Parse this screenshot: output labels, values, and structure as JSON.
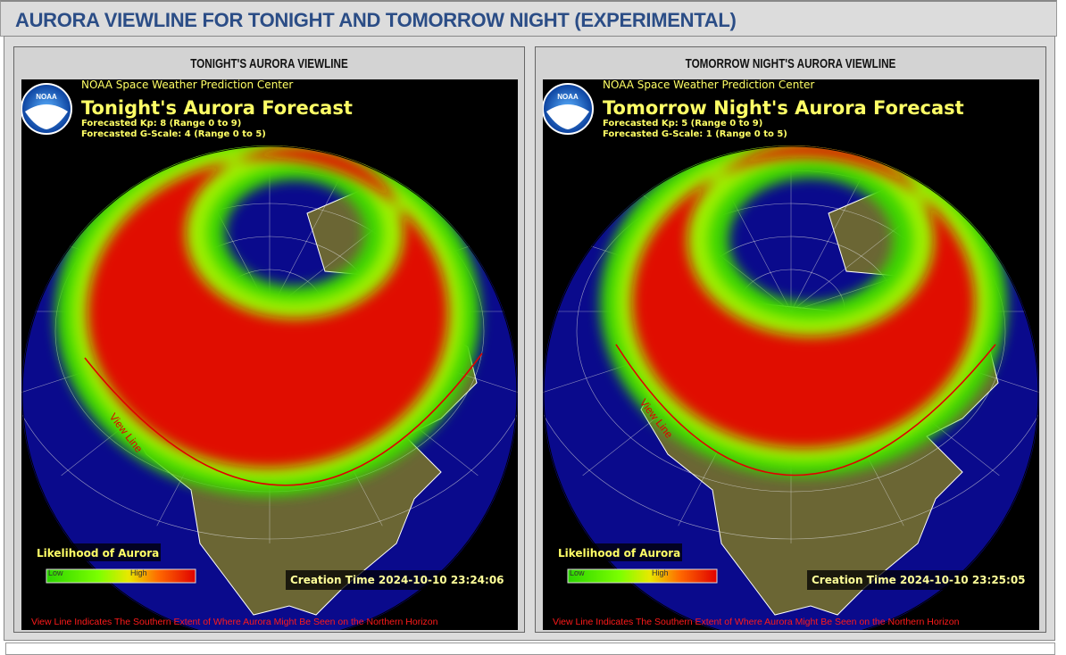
{
  "header": {
    "title": "AURORA VIEWLINE FOR TONIGHT AND TOMORROW NIGHT (EXPERIMENTAL)"
  },
  "panels": [
    {
      "heading": "TONIGHT'S AURORA VIEWLINE",
      "image": {
        "logo": "NOAA",
        "org": "NOAA Space Weather Prediction Center",
        "title": "Tonight's Aurora Forecast",
        "kp": "Forecasted Kp: 8 (Range 0 to 9)",
        "gscale": "Forecasted G-Scale: 4 (Range 0 to 5)",
        "viewline_label": "View Line",
        "legend_title": "Likelihood of Aurora",
        "legend_low": "Low",
        "legend_high": "High",
        "creation_time": "Creation Time 2024-10-10 23:24:06",
        "footnote": "View Line Indicates The Southern Extent of Where Aurora Might Be Seen on the Northern Horizon"
      }
    },
    {
      "heading": "TOMORROW NIGHT'S AURORA VIEWLINE",
      "image": {
        "logo": "NOAA",
        "org": "NOAA Space Weather Prediction Center",
        "title": "Tomorrow Night's Aurora Forecast",
        "kp": "Forecasted Kp: 5 (Range 0 to 9)",
        "gscale": "Forecasted G-Scale: 1 (Range 0 to 5)",
        "viewline_label": "View Line",
        "legend_title": "Likelihood of Aurora",
        "legend_low": "Low",
        "legend_high": "High",
        "creation_time": "Creation Time 2024-10-10 23:25:05",
        "footnote": "View Line Indicates The Southern Extent of Where Aurora Might Be Seen on the Northern Horizon"
      }
    }
  ]
}
